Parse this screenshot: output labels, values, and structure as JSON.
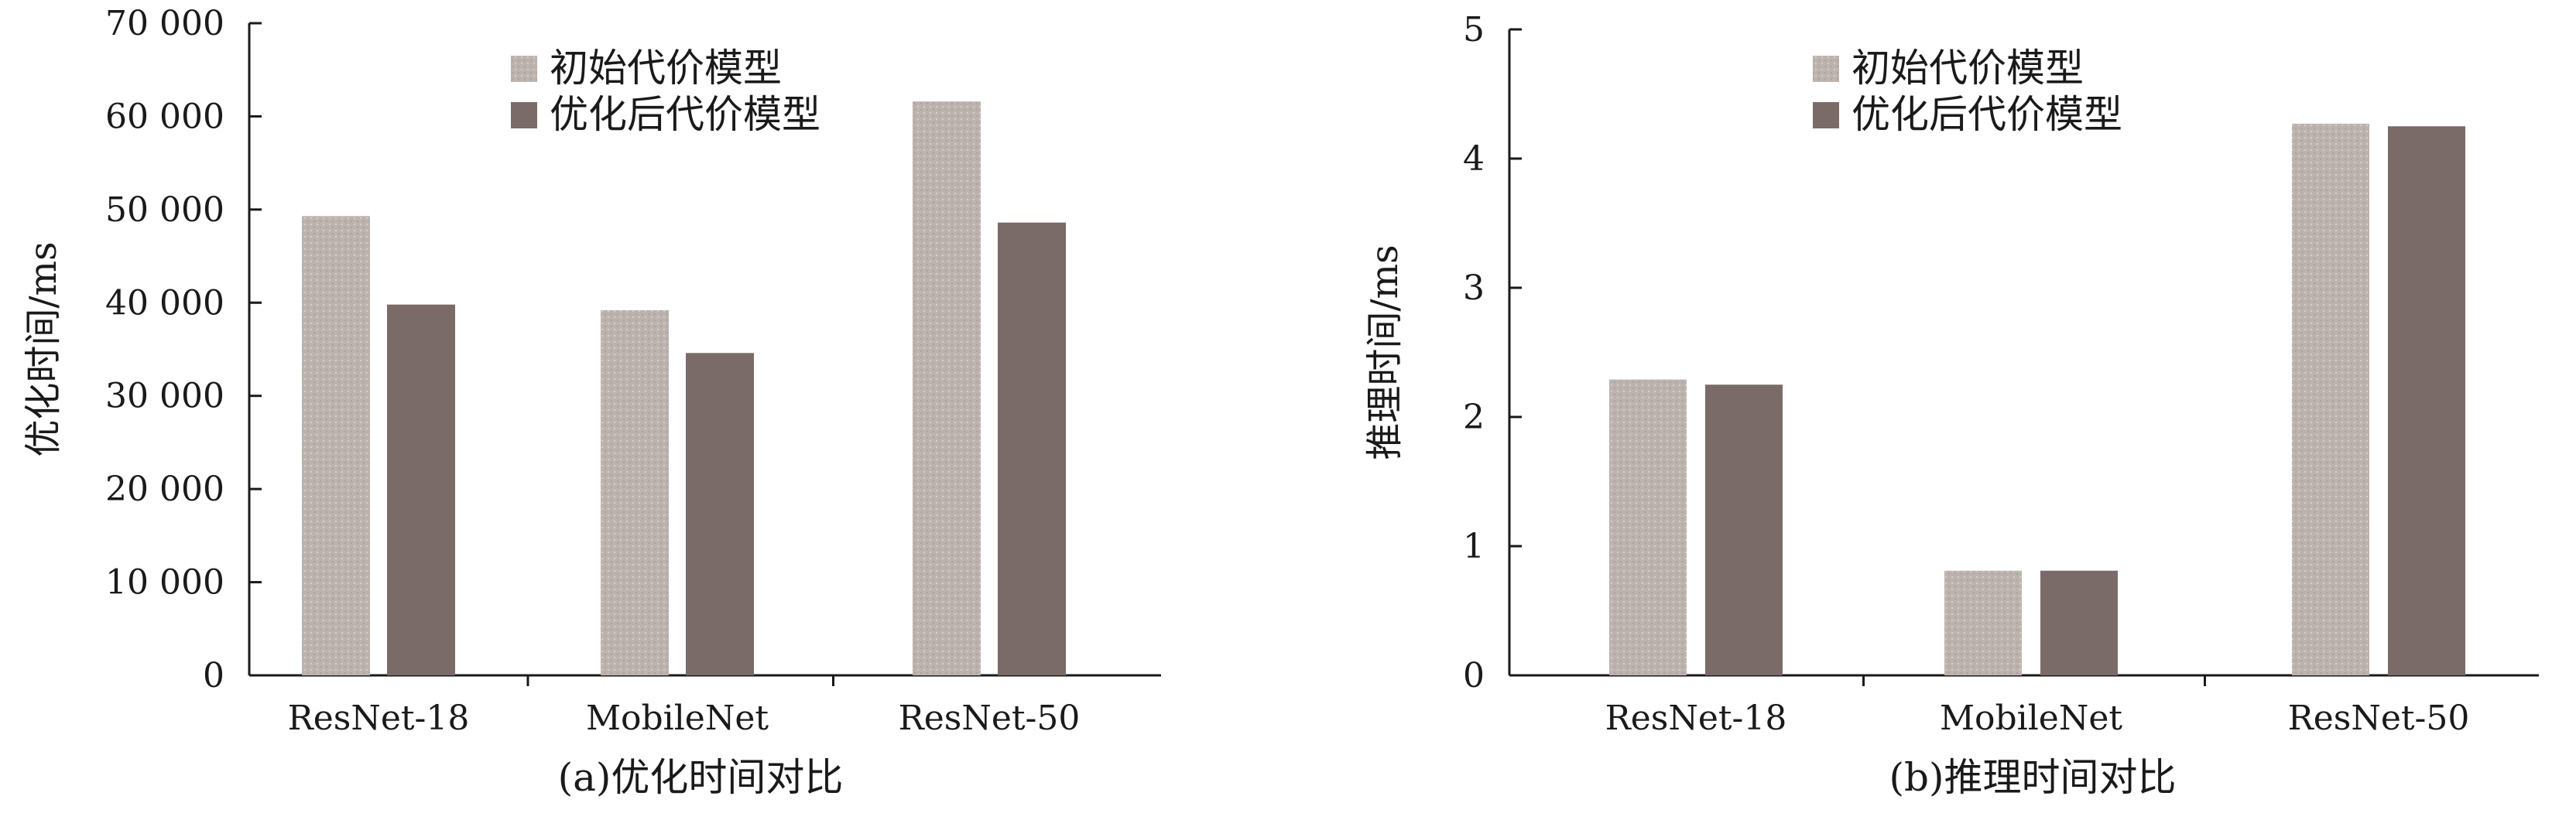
{
  "colors": {
    "initial": "#b9b0ab",
    "optimized": "#7b6b68",
    "axis": "#1a1a1a"
  },
  "chart_data": [
    {
      "type": "bar",
      "caption": "(a)优化时间对比",
      "ylabel": "优化时间/ms",
      "categories": [
        "ResNet-18",
        "MobileNet",
        "ResNet-50"
      ],
      "ylim": [
        0,
        70000
      ],
      "yticks": [
        0,
        10000,
        20000,
        30000,
        40000,
        50000,
        60000,
        70000
      ],
      "ytick_labels": [
        "0",
        "10 000",
        "20 000",
        "30 000",
        "40 000",
        "50 000",
        "60 000",
        "70 000"
      ],
      "legend_position": "top-center",
      "series": [
        {
          "name": "初始代价模型",
          "values": [
            49300,
            39200,
            61600
          ]
        },
        {
          "name": "优化后代价模型",
          "values": [
            39800,
            34600,
            48600
          ]
        }
      ]
    },
    {
      "type": "bar",
      "caption": "(b)推理时间对比",
      "ylabel": "推理时间/ms",
      "categories": [
        "ResNet-18",
        "MobileNet",
        "ResNet-50"
      ],
      "ylim": [
        0,
        5
      ],
      "yticks": [
        0,
        1,
        2,
        3,
        4,
        5
      ],
      "ytick_labels": [
        "0",
        "1",
        "2",
        "3",
        "4",
        "5"
      ],
      "legend_position": "top-center",
      "series": [
        {
          "name": "初始代价模型",
          "values": [
            2.29,
            0.81,
            4.27
          ]
        },
        {
          "name": "优化后代价模型",
          "values": [
            2.25,
            0.81,
            4.25
          ]
        }
      ]
    }
  ]
}
